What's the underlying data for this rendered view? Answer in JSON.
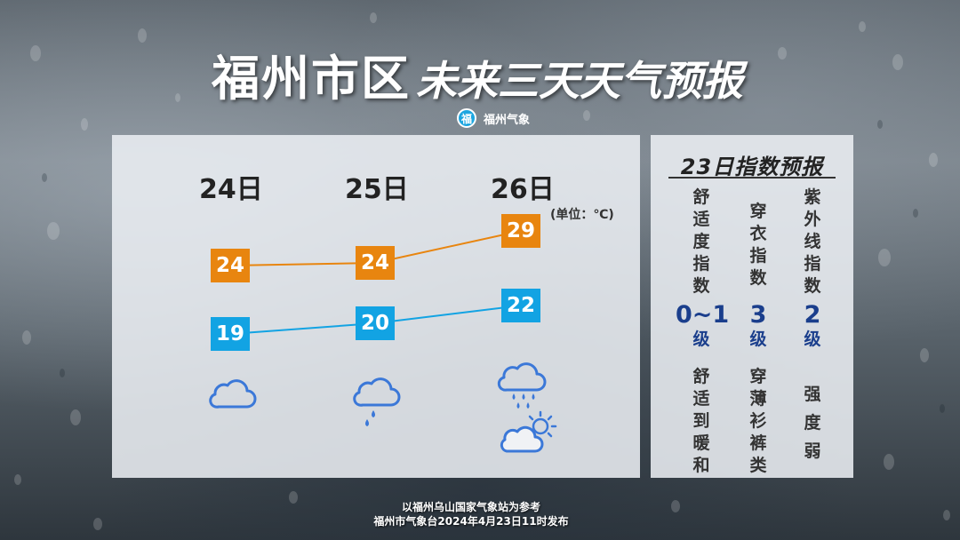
{
  "header": {
    "title_main": "福州市区",
    "title_sub": "未来三天天气预报",
    "brand": "福州气象"
  },
  "forecast": {
    "unit": "(单位：℃)",
    "days": [
      {
        "date": "24日",
        "high": "24",
        "low": "19",
        "icons": [
          "cloudy-icon"
        ]
      },
      {
        "date": "25日",
        "high": "24",
        "low": "20",
        "icons": [
          "rain-icon"
        ]
      },
      {
        "date": "26日",
        "high": "29",
        "low": "22",
        "icons": [
          "rain-icon",
          "partly-cloudy-icon"
        ]
      }
    ],
    "colors": {
      "high": "#e8850f",
      "low": "#12a3e3",
      "icon": "#3b78d8"
    }
  },
  "indices": {
    "title": "23日指数预报",
    "items": [
      {
        "name": "舒适度指数",
        "level_num": "0~1",
        "level_unit": "级",
        "desc": "舒适到暖和"
      },
      {
        "name": "穿衣指数",
        "level_num": "3",
        "level_unit": "级",
        "desc": "穿薄衫裤类"
      },
      {
        "name": "紫外线指数",
        "level_num": "2",
        "level_unit": "级",
        "desc": "强度弱"
      }
    ]
  },
  "footer": {
    "line1": "以福州乌山国家气象站为参考",
    "line2": "福州市气象台2024年4月23日11时发布"
  }
}
